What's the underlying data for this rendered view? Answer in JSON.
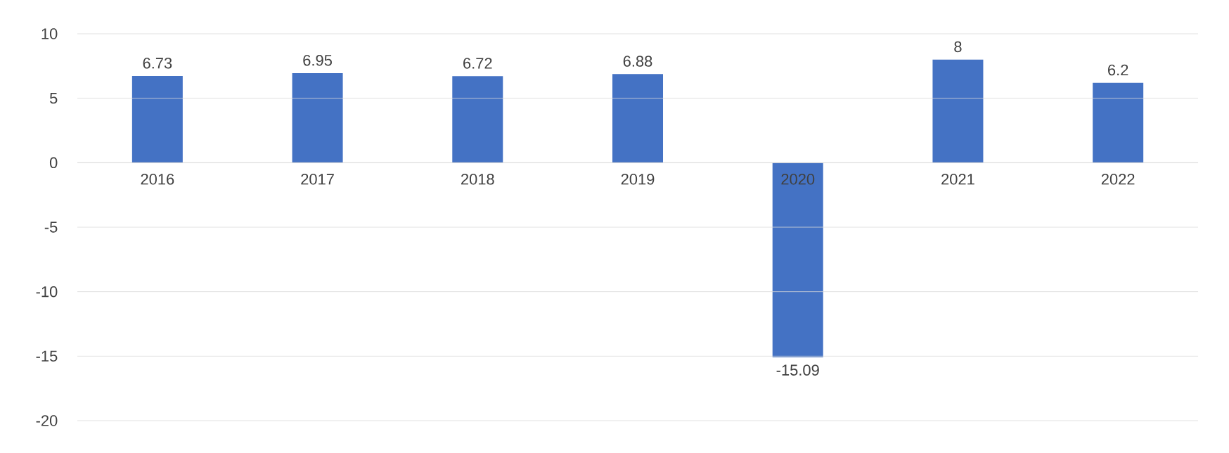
{
  "chart_data": {
    "type": "bar",
    "categories": [
      "2016",
      "2017",
      "2018",
      "2019",
      "2020",
      "2021",
      "2022"
    ],
    "values": [
      6.73,
      6.95,
      6.72,
      6.88,
      -15.09,
      8,
      6.2
    ],
    "value_labels": [
      "6.73",
      "6.95",
      "6.72",
      "6.88",
      "-15.09",
      "8",
      "6.2"
    ],
    "color": "#4472c4",
    "ylim": [
      -20,
      10
    ],
    "yticks": [
      -20,
      -15,
      -10,
      -5,
      0,
      5,
      10
    ],
    "grid": "y"
  }
}
